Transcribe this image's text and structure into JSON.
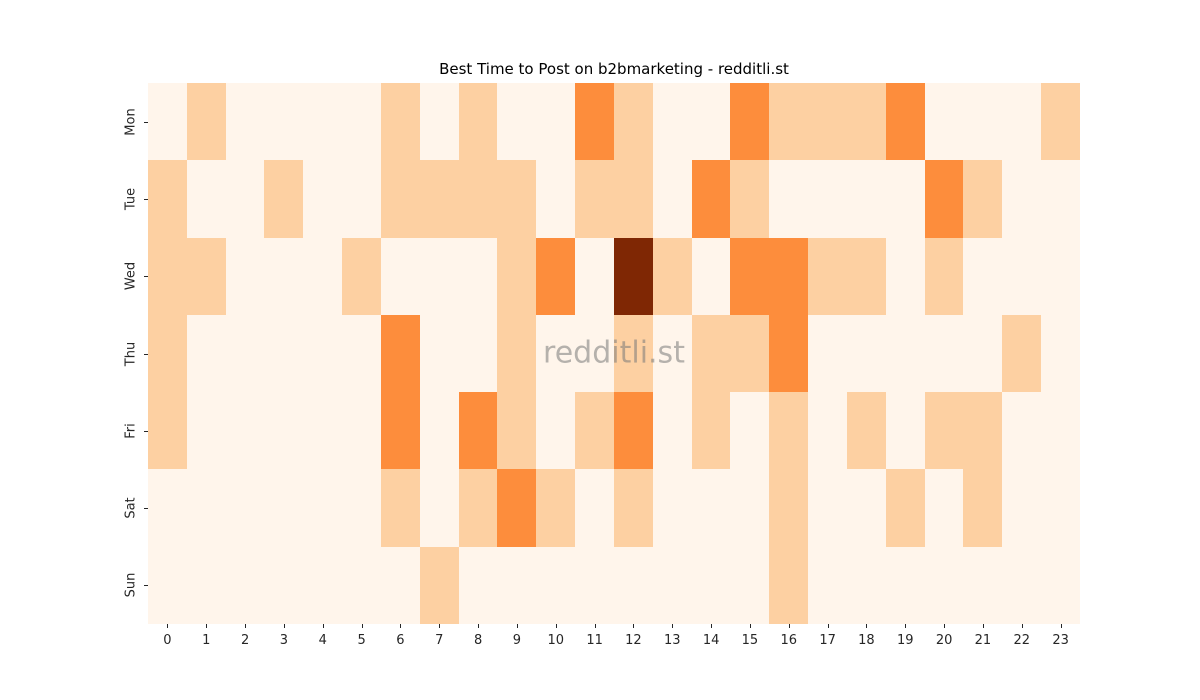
{
  "title": "Best Time to Post on b2bmarketing - redditli.st",
  "watermark": "redditli.st",
  "chart_data": {
    "type": "heatmap",
    "title": "Best Time to Post on b2bmarketing - redditli.st",
    "xlabel": "",
    "ylabel": "",
    "x_labels": [
      "0",
      "1",
      "2",
      "3",
      "4",
      "5",
      "6",
      "7",
      "8",
      "9",
      "10",
      "11",
      "12",
      "13",
      "14",
      "15",
      "16",
      "17",
      "18",
      "19",
      "20",
      "21",
      "22",
      "23"
    ],
    "y_labels": [
      "Mon",
      "Tue",
      "Wed",
      "Thu",
      "Fri",
      "Sat",
      "Sun"
    ],
    "values": [
      [
        0,
        1,
        0,
        0,
        0,
        0,
        1,
        0,
        1,
        0,
        0,
        2,
        1,
        0,
        0,
        2,
        1,
        1,
        1,
        2,
        0,
        0,
        0,
        1
      ],
      [
        1,
        0,
        0,
        1,
        0,
        0,
        1,
        1,
        1,
        1,
        0,
        1,
        1,
        0,
        2,
        1,
        0,
        0,
        0,
        0,
        2,
        1,
        0,
        0
      ],
      [
        1,
        1,
        0,
        0,
        0,
        1,
        0,
        0,
        0,
        1,
        2,
        0,
        4,
        1,
        0,
        2,
        2,
        1,
        1,
        0,
        1,
        0,
        0,
        0
      ],
      [
        1,
        0,
        0,
        0,
        0,
        0,
        2,
        0,
        0,
        1,
        0,
        0,
        1,
        0,
        1,
        1,
        2,
        0,
        0,
        0,
        0,
        0,
        1,
        0
      ],
      [
        1,
        0,
        0,
        0,
        0,
        0,
        2,
        0,
        2,
        1,
        0,
        1,
        2,
        0,
        1,
        0,
        1,
        0,
        1,
        0,
        1,
        1,
        0,
        0
      ],
      [
        0,
        0,
        0,
        0,
        0,
        0,
        1,
        0,
        1,
        2,
        1,
        0,
        1,
        0,
        0,
        0,
        1,
        0,
        0,
        1,
        0,
        1,
        0,
        0
      ],
      [
        0,
        0,
        0,
        0,
        0,
        0,
        0,
        1,
        0,
        0,
        0,
        0,
        0,
        0,
        0,
        0,
        1,
        0,
        0,
        0,
        0,
        0,
        0,
        0
      ]
    ],
    "value_range": [
      0,
      4
    ],
    "colormap": "Oranges",
    "palette": {
      "0": "#fff5eb",
      "1": "#fdd0a2",
      "2": "#fd8d3c",
      "4": "#7f2704"
    },
    "grid": false,
    "legend": false,
    "tick_color": "#262626",
    "watermark_color": "#787878"
  }
}
